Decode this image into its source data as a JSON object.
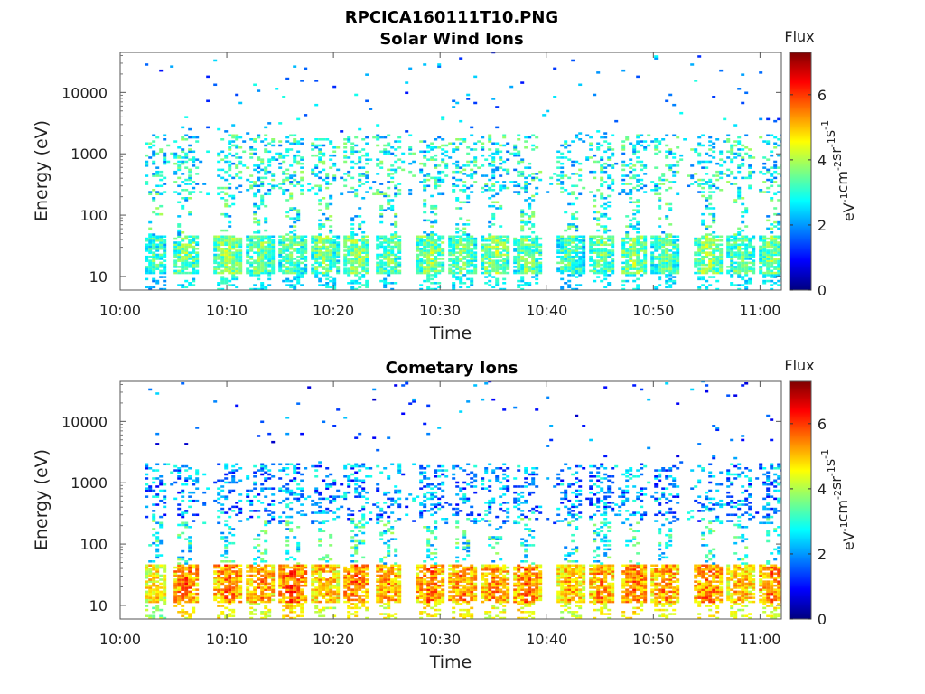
{
  "figure": {
    "title": "RPCICA160111T10.PNG"
  },
  "chart_data": [
    {
      "type": "heatmap",
      "title": "Solar Wind Ions",
      "xlabel": "Time",
      "ylabel": "Energy (eV)",
      "x_ticks": [
        "10:00",
        "10:10",
        "10:20",
        "10:30",
        "10:40",
        "10:50",
        "11:00"
      ],
      "xlim": [
        "10:00",
        "11:02"
      ],
      "y_scale": "log",
      "y_ticks": [
        10,
        100,
        1000,
        10000
      ],
      "ylim": [
        6,
        45000
      ],
      "colorbar": {
        "title": "Flux",
        "label": "eV^-1 cm^-2 sr^-1 s^-1",
        "ticks": [
          0,
          2,
          4,
          6
        ],
        "range": [
          0,
          7.3
        ],
        "colormap": "jet"
      },
      "bursts": [
        {
          "time": "10:03",
          "band": "8-40 eV",
          "flux": 3.2
        },
        {
          "time": "10:06",
          "band": "8-40 eV",
          "flux": 3.6
        },
        {
          "time": "10:10",
          "band": "8-40 eV",
          "flux": 3.8
        },
        {
          "time": "10:13",
          "band": "8-40 eV",
          "flux": 3.6
        },
        {
          "time": "10:16",
          "band": "8-40 eV",
          "flux": 3.5
        },
        {
          "time": "10:19",
          "band": "8-40 eV",
          "flux": 3.6
        },
        {
          "time": "10:22",
          "band": "8-40 eV",
          "flux": 3.8
        },
        {
          "time": "10:25",
          "band": "8-40 eV",
          "flux": 3.5
        },
        {
          "time": "10:29",
          "band": "8-40 eV",
          "flux": 3.8
        },
        {
          "time": "10:32",
          "band": "8-40 eV",
          "flux": 3.6
        },
        {
          "time": "10:35",
          "band": "8-40 eV",
          "flux": 3.8
        },
        {
          "time": "10:38",
          "band": "8-40 eV",
          "flux": 3.6
        },
        {
          "time": "10:42",
          "band": "8-40 eV",
          "flux": 3.4
        },
        {
          "time": "10:45",
          "band": "8-40 eV",
          "flux": 3.5
        },
        {
          "time": "10:48",
          "band": "8-40 eV",
          "flux": 3.8
        },
        {
          "time": "10:51",
          "band": "8-40 eV",
          "flux": 3.5
        },
        {
          "time": "10:55",
          "band": "8-40 eV",
          "flux": 3.8
        },
        {
          "time": "10:58",
          "band": "8-40 eV",
          "flux": 3.5
        },
        {
          "time": "11:01",
          "band": "8-40 eV",
          "flux": 3.6
        }
      ],
      "background_flux": {
        "band_200_2000_eV": 2.8,
        "sparse_above_2000_eV": 2.0
      }
    },
    {
      "type": "heatmap",
      "title": "Cometary Ions",
      "xlabel": "Time",
      "ylabel": "Energy (eV)",
      "x_ticks": [
        "10:00",
        "10:10",
        "10:20",
        "10:30",
        "10:40",
        "10:50",
        "11:00"
      ],
      "xlim": [
        "10:00",
        "11:02"
      ],
      "y_scale": "log",
      "y_ticks": [
        10,
        100,
        1000,
        10000
      ],
      "ylim": [
        6,
        45000
      ],
      "colorbar": {
        "title": "Flux",
        "label": "eV^-1 cm^-2 sr^-1 s^-1",
        "ticks": [
          0,
          2,
          4,
          6
        ],
        "range": [
          0,
          7.3
        ],
        "colormap": "jet"
      },
      "bursts": [
        {
          "time": "10:03",
          "band": "8-40 eV",
          "flux": 4.8
        },
        {
          "time": "10:06",
          "band": "8-40 eV",
          "flux": 5.6
        },
        {
          "time": "10:10",
          "band": "8-40 eV",
          "flux": 5.6
        },
        {
          "time": "10:13",
          "band": "8-40 eV",
          "flux": 5.4
        },
        {
          "time": "10:16",
          "band": "8-40 eV",
          "flux": 5.8
        },
        {
          "time": "10:19",
          "band": "8-40 eV",
          "flux": 5.2
        },
        {
          "time": "10:22",
          "band": "8-40 eV",
          "flux": 5.6
        },
        {
          "time": "10:25",
          "band": "8-40 eV",
          "flux": 5.4
        },
        {
          "time": "10:29",
          "band": "8-40 eV",
          "flux": 5.6
        },
        {
          "time": "10:32",
          "band": "8-40 eV",
          "flux": 5.5
        },
        {
          "time": "10:35",
          "band": "8-40 eV",
          "flux": 5.4
        },
        {
          "time": "10:38",
          "band": "8-40 eV",
          "flux": 5.6
        },
        {
          "time": "10:42",
          "band": "8-40 eV",
          "flux": 5.2
        },
        {
          "time": "10:45",
          "band": "8-40 eV",
          "flux": 5.4
        },
        {
          "time": "10:48",
          "band": "8-40 eV",
          "flux": 5.6
        },
        {
          "time": "10:51",
          "band": "8-40 eV",
          "flux": 5.4
        },
        {
          "time": "10:55",
          "band": "8-40 eV",
          "flux": 5.6
        },
        {
          "time": "10:58",
          "band": "8-40 eV",
          "flux": 5.2
        },
        {
          "time": "11:01",
          "band": "8-40 eV",
          "flux": 5.5
        }
      ],
      "background_flux": {
        "band_200_2000_eV": 2.0,
        "sparse_above_2000_eV": 1.5
      }
    }
  ]
}
